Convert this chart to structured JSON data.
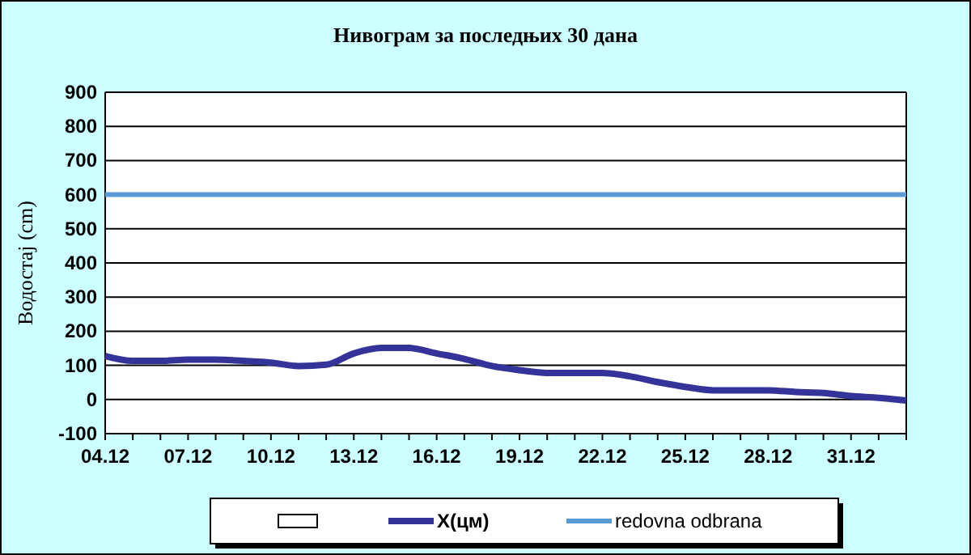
{
  "chart_data": {
    "type": "line",
    "title": "Нивограм за последњих 30 дана",
    "ylabel": "Водостај (cm)",
    "categories": [
      "04.12",
      null,
      null,
      "07.12",
      null,
      null,
      "10.12",
      null,
      null,
      "13.12",
      null,
      null,
      "16.12",
      null,
      null,
      "19.12",
      null,
      null,
      "22.12",
      null,
      null,
      "25.12",
      null,
      null,
      "28.12",
      null,
      null,
      "31.12",
      null,
      null
    ],
    "series": [
      {
        "name": "X(цм)",
        "color": "#333399",
        "values": [
          127,
          113,
          113,
          117,
          117,
          113,
          108,
          98,
          102,
          135,
          151,
          151,
          135,
          119,
          98,
          86,
          78,
          78,
          78,
          68,
          51,
          37,
          27,
          27,
          27,
          22,
          19,
          10,
          5,
          -3
        ]
      }
    ],
    "ref_lines": [
      {
        "axis": "y",
        "value": 600,
        "label": "redovna odbrana",
        "color": "#5b9bd5"
      }
    ],
    "ylim": [
      -100,
      900
    ],
    "yticks": [
      -100,
      0,
      100,
      200,
      300,
      400,
      500,
      600,
      700,
      800,
      900
    ],
    "grid": "y",
    "legend": "bottom",
    "line_style": "solid"
  }
}
